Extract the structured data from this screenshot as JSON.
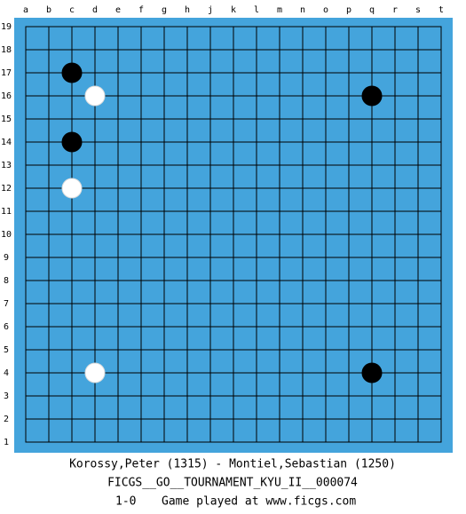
{
  "board": {
    "columns": [
      "a",
      "b",
      "c",
      "d",
      "e",
      "f",
      "g",
      "h",
      "j",
      "k",
      "l",
      "m",
      "n",
      "o",
      "p",
      "q",
      "r",
      "s",
      "t"
    ],
    "rows": [
      19,
      18,
      17,
      16,
      15,
      14,
      13,
      12,
      11,
      10,
      9,
      8,
      7,
      6,
      5,
      4,
      3,
      2,
      1
    ],
    "stones": [
      {
        "column": "c",
        "row": 17,
        "color": "black"
      },
      {
        "column": "d",
        "row": 16,
        "color": "white"
      },
      {
        "column": "q",
        "row": 16,
        "color": "black"
      },
      {
        "column": "c",
        "row": 14,
        "color": "black"
      },
      {
        "column": "c",
        "row": 12,
        "color": "white"
      },
      {
        "column": "d",
        "row": 4,
        "color": "white"
      },
      {
        "column": "q",
        "row": 4,
        "color": "black"
      }
    ]
  },
  "footer": {
    "players": "Korossy,Peter (1315) - Montiel,Sebastian (1250)",
    "event": "FICGS__GO__TOURNAMENT_KYU_II__000074",
    "result": "1-0",
    "note": "Game played at www.ficgs.com"
  }
}
